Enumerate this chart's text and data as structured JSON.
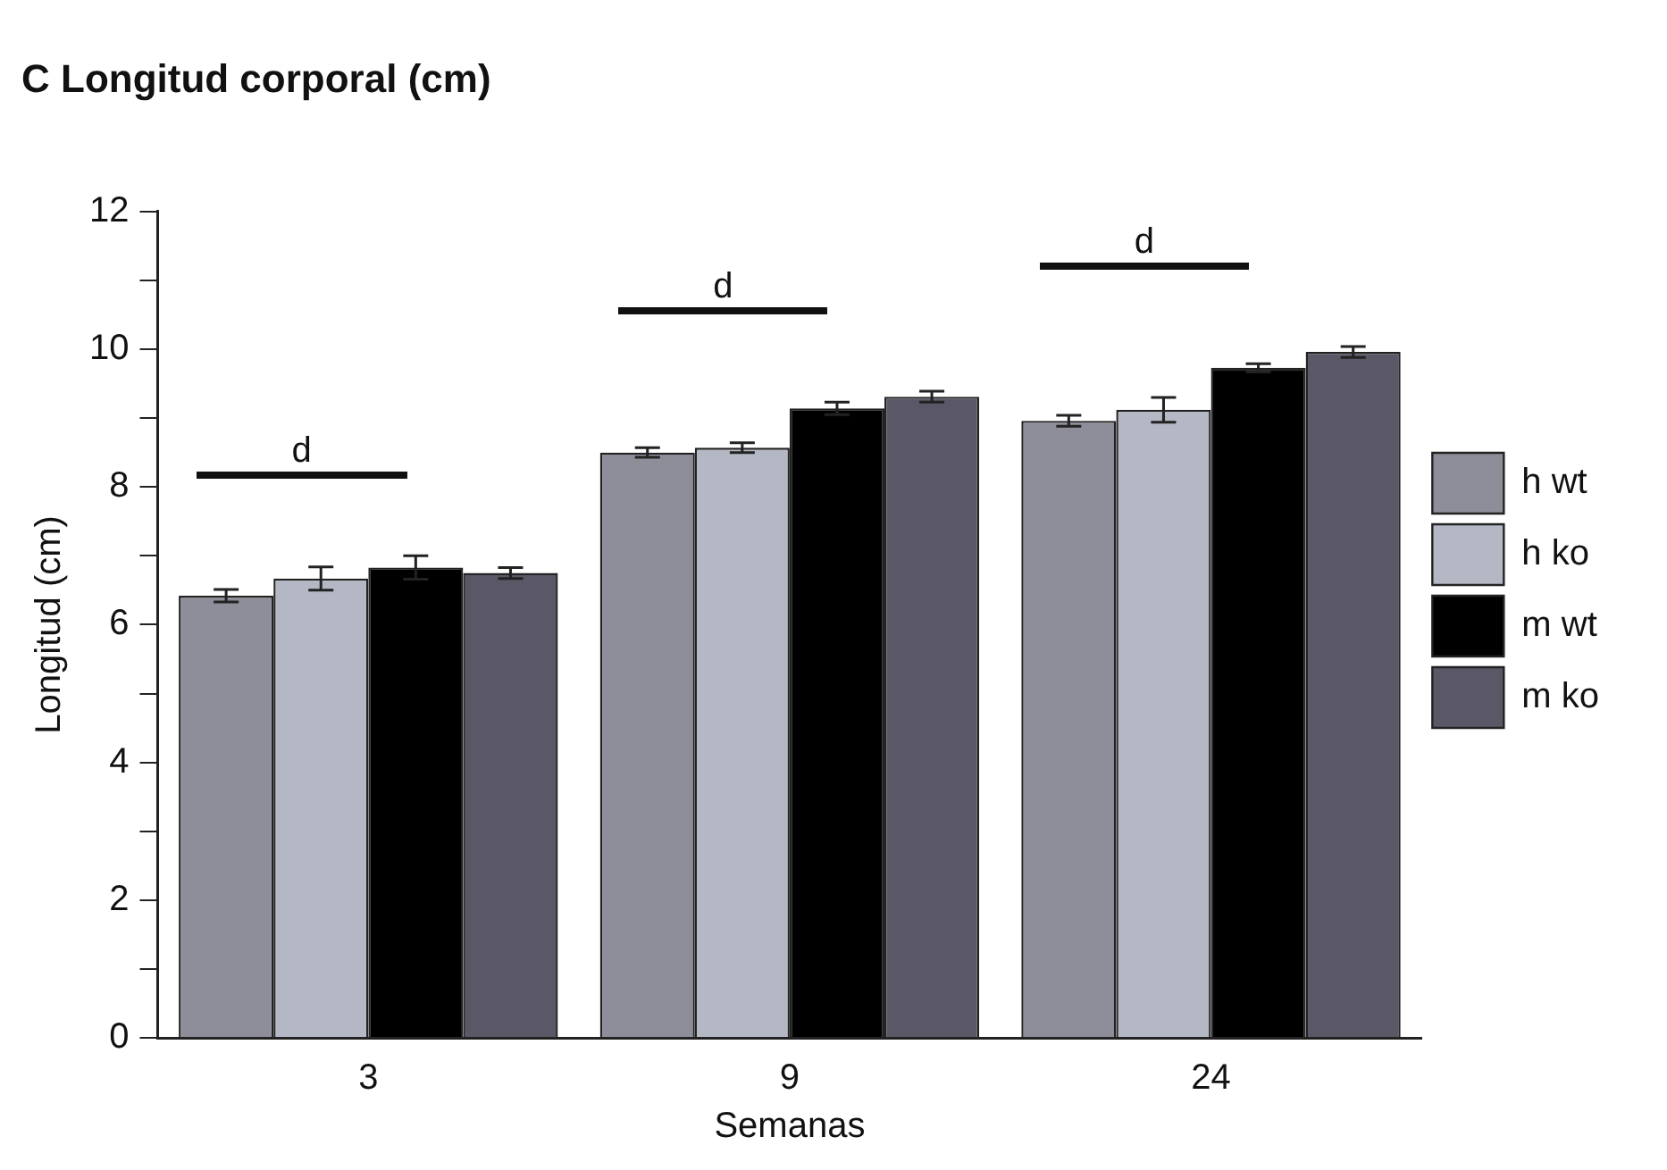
{
  "chart_data": {
    "type": "bar",
    "title": "C Longitud corporal (cm)",
    "xlabel": "Semanas",
    "ylabel": "Longitud (cm)",
    "categories": [
      "3",
      "9",
      "24"
    ],
    "series": [
      {
        "name": "h wt",
        "color": "#8e8e9a",
        "values": [
          6.42,
          8.5,
          8.96
        ],
        "errors": [
          0.09,
          0.07,
          0.08
        ]
      },
      {
        "name": "h ko",
        "color": "#b4b8c4",
        "values": [
          6.67,
          8.57,
          9.12
        ],
        "errors": [
          0.17,
          0.07,
          0.18
        ]
      },
      {
        "name": "m wt",
        "color": "#000000",
        "values": [
          6.83,
          9.14,
          9.73
        ],
        "errors": [
          0.17,
          0.09,
          0.06
        ]
      },
      {
        "name": "m ko",
        "color": "#5a5866",
        "values": [
          6.75,
          9.31,
          9.96
        ],
        "errors": [
          0.08,
          0.08,
          0.08
        ]
      }
    ],
    "ylim": [
      0,
      12
    ],
    "yticks": [
      0,
      {
        "value": 1,
        "label": null
      },
      2,
      {
        "value": 3,
        "label": null
      },
      4,
      {
        "value": 5,
        "label": null
      },
      6,
      {
        "value": 7,
        "label": null
      },
      8,
      {
        "value": 9,
        "label": null
      },
      10,
      {
        "value": 11,
        "label": null
      },
      12
    ],
    "annotations": [
      "d",
      "d",
      "d"
    ],
    "grid": false,
    "legend": "right"
  }
}
